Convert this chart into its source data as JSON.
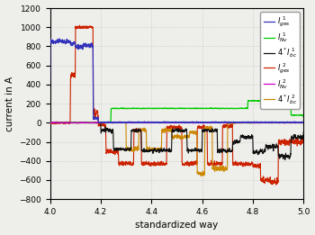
{
  "title": "",
  "xlabel": "standardized way",
  "ylabel": "current in A",
  "xlim": [
    4.0,
    5.0
  ],
  "ylim": [
    -800,
    1200
  ],
  "yticks": [
    -800,
    -600,
    -400,
    -200,
    0,
    200,
    400,
    600,
    800,
    1000,
    1200
  ],
  "xticks": [
    4.0,
    4.2,
    4.4,
    4.6,
    4.8,
    5.0
  ],
  "legend_labels": [
    "I_ges 1",
    "I_Nv 1",
    "4*I_bc 1",
    "I_ges 2",
    "I_Nv 2",
    "4*I_bc 2"
  ],
  "line_colors": [
    "#3333bb",
    "#00cc00",
    "#111111",
    "#cc2200",
    "#cc00cc",
    "#cc8800"
  ],
  "background": "#eeeeea",
  "grid_color": "#cccccc"
}
